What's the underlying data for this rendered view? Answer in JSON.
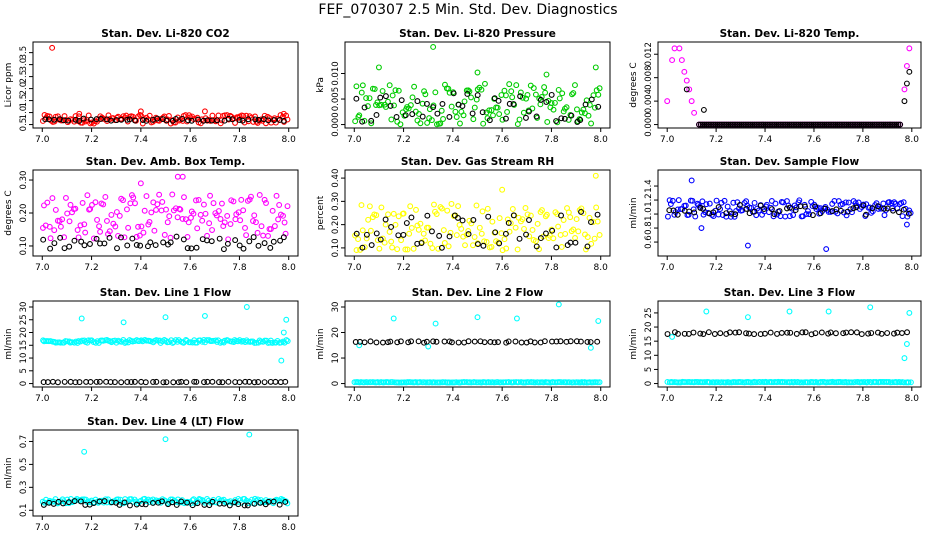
{
  "title": "FEF_070307  2.5 Min. Std. Dev. Diagnostics",
  "chart_data": [
    {
      "type": "scatter",
      "title": "Stan. Dev. Li-820 CO2",
      "ylabel": "Licor ppm",
      "xlim": [
        7.0,
        8.0
      ],
      "ylim": [
        0.5,
        3.8
      ],
      "xticks": [
        "7.0",
        "7.2",
        "7.4",
        "7.6",
        "7.8",
        "8.0"
      ],
      "yticks": [
        "0.5",
        "1.0",
        "1.5",
        "2.0",
        "2.5",
        "3.0",
        "3.5"
      ],
      "series": [
        {
          "name": "primary",
          "color": "#ff0000",
          "base": 0.72,
          "spread": 0.18,
          "extra": [
            [
              7.04,
              3.7
            ],
            [
              7.4,
              1.05
            ],
            [
              7.66,
              1.05
            ],
            [
              7.15,
              0.95
            ],
            [
              7.98,
              0.95
            ]
          ]
        },
        {
          "name": "secondary",
          "color": "#000000",
          "base": 0.7,
          "spread": 0.05,
          "extra": []
        }
      ]
    },
    {
      "type": "scatter",
      "title": "Stan. Dev. Li-820 Pressure",
      "ylabel": "kPa",
      "xlim": [
        7.0,
        8.0
      ],
      "ylim": [
        0.0,
        0.0155
      ],
      "xticks": [
        "7.0",
        "7.2",
        "7.4",
        "7.6",
        "7.8",
        "8.0"
      ],
      "yticks": [
        "0.000",
        "0.005",
        "0.010"
      ],
      "series": [
        {
          "name": "primary",
          "color": "#00cc00",
          "base": 0.004,
          "spread": 0.004,
          "extra": [
            [
              7.32,
              0.0152
            ],
            [
              7.1,
              0.0112
            ],
            [
              7.78,
              0.0098
            ],
            [
              7.98,
              0.0112
            ],
            [
              7.5,
              0.0102
            ]
          ]
        },
        {
          "name": "secondary",
          "color": "#000000",
          "base": 0.0035,
          "spread": 0.003,
          "extra": []
        }
      ]
    },
    {
      "type": "scatter",
      "title": "Stan. Dev. Li-820 Temp.",
      "ylabel": "degrees C",
      "xlim": [
        7.0,
        8.0
      ],
      "ylim": [
        0.0,
        0.0135
      ],
      "xticks": [
        "7.0",
        "7.2",
        "7.4",
        "7.6",
        "7.8",
        "8.0"
      ],
      "yticks": [
        "0.000",
        "0.004",
        "0.008",
        "0.012"
      ],
      "series": [
        {
          "name": "primary",
          "color": "#ff00ff",
          "base": 0.0,
          "spread": 0.0,
          "extra": [
            [
              7.0,
              0.004
            ],
            [
              7.02,
              0.011
            ],
            [
              7.03,
              0.013
            ],
            [
              7.05,
              0.013
            ],
            [
              7.06,
              0.011
            ],
            [
              7.07,
              0.009
            ],
            [
              7.08,
              0.0075
            ],
            [
              7.09,
              0.006
            ],
            [
              7.1,
              0.004
            ],
            [
              7.11,
              0.002
            ],
            [
              7.97,
              0.006
            ],
            [
              7.98,
              0.01
            ],
            [
              7.99,
              0.013
            ]
          ]
        },
        {
          "name": "secondary",
          "color": "#000000",
          "base": 0.0,
          "spread": 0.0,
          "extra": [
            [
              7.15,
              0.0025
            ],
            [
              7.97,
              0.004
            ],
            [
              7.98,
              0.007
            ],
            [
              7.99,
              0.009
            ],
            [
              7.08,
              0.006
            ]
          ]
        }
      ]
    },
    {
      "type": "scatter",
      "title": "Stan. Dev. Amb. Box Temp.",
      "ylabel": "degrees C",
      "xlim": [
        7.0,
        8.0
      ],
      "ylim": [
        0.08,
        0.32
      ],
      "xticks": [
        "7.0",
        "7.2",
        "7.4",
        "7.6",
        "7.8",
        "8.0"
      ],
      "yticks": [
        "0.10",
        "0.20",
        "0.30"
      ],
      "series": [
        {
          "name": "primary",
          "color": "#ff00ff",
          "base": 0.19,
          "spread": 0.07,
          "extra": [
            [
              7.55,
              0.31
            ],
            [
              7.57,
              0.31
            ],
            [
              7.4,
              0.29
            ]
          ]
        },
        {
          "name": "secondary",
          "color": "#000000",
          "base": 0.11,
          "spread": 0.02,
          "extra": []
        }
      ]
    },
    {
      "type": "scatter",
      "title": "Stan. Dev. Gas Stream RH",
      "ylabel": "percent",
      "xlim": [
        7.0,
        8.0
      ],
      "ylim": [
        0.08,
        0.42
      ],
      "xticks": [
        "7.0",
        "7.2",
        "7.4",
        "7.6",
        "7.8",
        "8.0"
      ],
      "yticks": [
        "0.10",
        "0.20",
        "0.30",
        "0.40"
      ],
      "series": [
        {
          "name": "primary",
          "color": "#ffff00",
          "base": 0.19,
          "spread": 0.1,
          "extra": [
            [
              7.98,
              0.41
            ],
            [
              7.6,
              0.35
            ]
          ]
        },
        {
          "name": "secondary",
          "color": "#000000",
          "base": 0.18,
          "spread": 0.08,
          "extra": []
        }
      ]
    },
    {
      "type": "scatter",
      "title": "Stan. Dev. Sample Flow",
      "ylabel": "ml/min",
      "xlim": [
        7.0,
        8.0
      ],
      "ylim": [
        0.45,
        1.58
      ],
      "xticks": [
        "7.0",
        "7.2",
        "7.4",
        "7.6",
        "7.8",
        "8.0"
      ],
      "yticks": [
        "0.6",
        "0.8",
        "1.0",
        "1.2",
        "1.4"
      ],
      "series": [
        {
          "name": "primary",
          "color": "#0000ff",
          "base": 1.08,
          "spread": 0.12,
          "extra": [
            [
              7.1,
              1.48
            ],
            [
              7.33,
              0.55
            ],
            [
              7.65,
              0.5
            ],
            [
              7.14,
              0.8
            ],
            [
              7.98,
              0.85
            ]
          ]
        },
        {
          "name": "secondary",
          "color": "#000000",
          "base": 1.05,
          "spread": 0.08,
          "extra": []
        }
      ]
    },
    {
      "type": "scatter",
      "title": "Stan. Dev. Line 1 Flow",
      "ylabel": "ml/min",
      "xlim": [
        7.0,
        8.0
      ],
      "ylim": [
        0,
        31
      ],
      "xticks": [
        "7.0",
        "7.2",
        "7.4",
        "7.6",
        "7.8",
        "8.0"
      ],
      "yticks": [
        "0",
        "5",
        "10",
        "15",
        "20",
        "25",
        "30"
      ],
      "series": [
        {
          "name": "primary",
          "color": "#00ffff",
          "base": 16.5,
          "spread": 0.6,
          "extra": [
            [
              7.16,
              25.5
            ],
            [
              7.33,
              24
            ],
            [
              7.5,
              26
            ],
            [
              7.66,
              26.5
            ],
            [
              7.83,
              30
            ],
            [
              7.99,
              25
            ],
            [
              7.97,
              9
            ],
            [
              7.98,
              20
            ]
          ]
        },
        {
          "name": "secondary",
          "color": "#000000",
          "base": 0.6,
          "spread": 0.1,
          "extra": []
        }
      ]
    },
    {
      "type": "scatter",
      "title": "Stan. Dev. Line 2 Flow",
      "ylabel": "ml/min",
      "xlim": [
        7.0,
        8.0
      ],
      "ylim": [
        0,
        31
      ],
      "xticks": [
        "7.0",
        "7.2",
        "7.4",
        "7.6",
        "7.8",
        "8.0"
      ],
      "yticks": [
        "0",
        "10",
        "20",
        "30"
      ],
      "series": [
        {
          "name": "primary",
          "color": "#00ffff",
          "base": 0.5,
          "spread": 0.1,
          "extra": [
            [
              7.16,
              25.5
            ],
            [
              7.33,
              23.5
            ],
            [
              7.5,
              26
            ],
            [
              7.66,
              25.5
            ],
            [
              7.83,
              31
            ],
            [
              7.99,
              24.5
            ],
            [
              7.02,
              15
            ],
            [
              7.3,
              14.5
            ],
            [
              7.96,
              14
            ]
          ]
        },
        {
          "name": "secondary",
          "color": "#000000",
          "base": 16.3,
          "spread": 0.3,
          "extra": []
        }
      ]
    },
    {
      "type": "scatter",
      "title": "Stan. Dev. Line 3 Flow",
      "ylabel": "ml/min",
      "xlim": [
        7.0,
        8.0
      ],
      "ylim": [
        0,
        28
      ],
      "xticks": [
        "7.0",
        "7.2",
        "7.4",
        "7.6",
        "7.8",
        "8.0"
      ],
      "yticks": [
        "0",
        "5",
        "10",
        "15",
        "20",
        "25"
      ],
      "series": [
        {
          "name": "primary",
          "color": "#00ffff",
          "base": 0.5,
          "spread": 0.1,
          "extra": [
            [
              7.16,
              25.5
            ],
            [
              7.33,
              23.5
            ],
            [
              7.5,
              25.5
            ],
            [
              7.66,
              25.5
            ],
            [
              7.83,
              27
            ],
            [
              7.99,
              25
            ],
            [
              7.97,
              9
            ],
            [
              7.98,
              14
            ],
            [
              7.02,
              16.5
            ]
          ]
        },
        {
          "name": "secondary",
          "color": "#000000",
          "base": 17.8,
          "spread": 0.4,
          "extra": []
        }
      ]
    },
    {
      "type": "scatter",
      "title": "Stan. Dev. Line 4 (LT) Flow",
      "ylabel": "ml/min",
      "xlim": [
        7.0,
        8.0
      ],
      "ylim": [
        0.08,
        0.77
      ],
      "xticks": [
        "7.0",
        "7.2",
        "7.4",
        "7.6",
        "7.8",
        "8.0"
      ],
      "yticks": [
        "0.1",
        "0.3",
        "0.5",
        "0.7"
      ],
      "series": [
        {
          "name": "primary",
          "color": "#00ffff",
          "base": 0.18,
          "spread": 0.02,
          "extra": [
            [
              7.17,
              0.61
            ],
            [
              7.5,
              0.72
            ],
            [
              7.84,
              0.76
            ]
          ]
        },
        {
          "name": "secondary",
          "color": "#000000",
          "base": 0.16,
          "spread": 0.02,
          "extra": []
        }
      ]
    }
  ]
}
